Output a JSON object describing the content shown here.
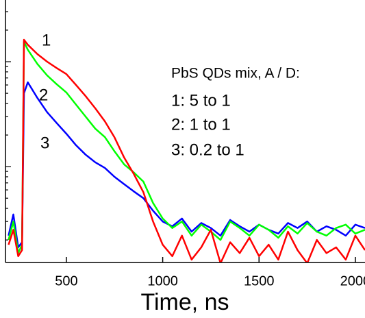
{
  "chart_data": {
    "type": "line",
    "xlabel": "Time, ns",
    "annotations": [
      "PbS QDs mix, A / D:",
      "1: 5 to 1",
      "2: 1 to 1",
      "3: 0.2 to 1"
    ],
    "x": [
      200,
      225,
      250,
      270,
      280,
      300,
      350,
      400,
      450,
      500,
      550,
      600,
      650,
      700,
      750,
      800,
      850,
      900,
      950,
      1000,
      1050,
      1100,
      1150,
      1200,
      1250,
      1300,
      1350,
      1400,
      1450,
      1500,
      1550,
      1600,
      1650,
      1700,
      1750,
      1800,
      1850,
      1900,
      1950,
      2000,
      2050
    ],
    "series": [
      {
        "name": "1",
        "color": "#ff0000",
        "values": [
          18,
          25,
          14,
          16,
          1618,
          1450,
          1180,
          1000,
          870,
          762,
          600,
          470,
          360,
          270,
          190,
          122,
          85,
          57,
          30,
          18,
          14,
          22,
          13,
          17,
          25,
          12,
          19,
          15,
          21,
          14,
          18,
          13,
          24,
          16,
          12,
          20,
          15,
          17,
          13,
          22,
          16
        ]
      },
      {
        "name": "2",
        "color": "#00ff00",
        "values": [
          20,
          30,
          15,
          18,
          1550,
          1300,
          950,
          740,
          610,
          509,
          390,
          300,
          230,
          191,
          140,
          105,
          88,
          72,
          45,
          32,
          26,
          30,
          22,
          28,
          24,
          20,
          30,
          26,
          22,
          28,
          25,
          21,
          27,
          23,
          29,
          24,
          22,
          26,
          28,
          23,
          25
        ]
      },
      {
        "name": "3",
        "color": "#0000ff",
        "values": [
          22,
          35,
          17,
          19,
          500,
          636,
          450,
          330,
          260,
          206,
          160,
          130,
          110,
          97,
          80,
          68,
          58,
          50,
          38,
          30,
          27,
          32,
          24,
          29,
          26,
          22,
          31,
          27,
          24,
          28,
          25,
          23,
          29,
          26,
          30,
          24,
          27,
          25,
          22,
          28,
          26
        ]
      }
    ],
    "xlim": [
      184,
      2050
    ],
    "xticks": [
      500,
      1000,
      1500,
      2000
    ],
    "ylim": [
      12.2,
      3873
    ],
    "ylog": true,
    "yticks": [
      20,
      30,
      40,
      50,
      60,
      70,
      80,
      90,
      100,
      200,
      300,
      400,
      500,
      600,
      700,
      800,
      900,
      1000,
      2000,
      3000
    ],
    "ytick_labels": false
  }
}
